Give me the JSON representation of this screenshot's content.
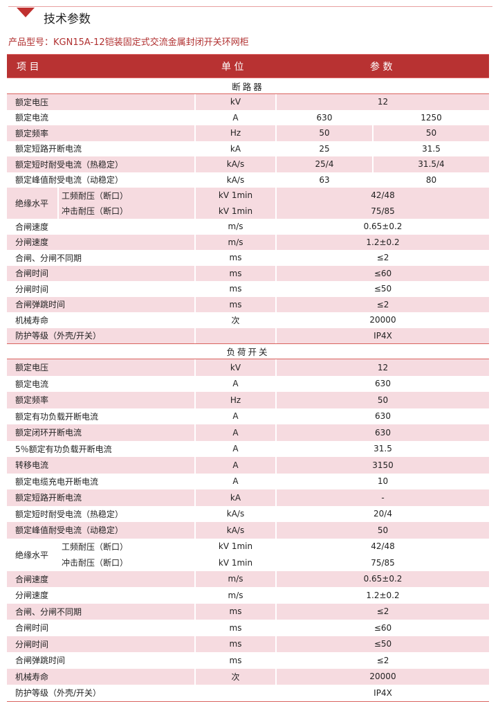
{
  "title": "技术参数",
  "model": "产品型号：KGN15A-12铠装固定式交流金属封闭开关环网柜",
  "header": {
    "item": "项 目",
    "unit": "单 位",
    "value": "参 数"
  },
  "colors": {
    "accent": "#b83232",
    "row_pink": "#f6dbe0"
  },
  "sections": [
    {
      "name": "断路器",
      "rows": [
        {
          "item": "额定电压",
          "unit": "kV",
          "values": [
            "12"
          ]
        },
        {
          "item": "额定电流",
          "unit": "A",
          "values": [
            "630",
            "1250"
          ]
        },
        {
          "item": "额定频率",
          "unit": "Hz",
          "values": [
            "50",
            "50"
          ]
        },
        {
          "item": "额定短路开断电流",
          "unit": "kA",
          "values": [
            "25",
            "31.5"
          ]
        },
        {
          "item": "额定短时耐受电流（热稳定）",
          "unit": "kA/s",
          "values": [
            "25/4",
            "31.5/4"
          ]
        },
        {
          "item": "额定峰值耐受电流（动稳定）",
          "unit": "kA/s",
          "values": [
            "63",
            "80"
          ]
        },
        {
          "group": "绝缘水平",
          "subs": [
            {
              "item": "工频耐压（断口）",
              "unit": "kV 1min",
              "values": [
                "42/48"
              ]
            },
            {
              "item": "冲击耐压（断口）",
              "unit": "kV 1min",
              "values": [
                "75/85"
              ]
            }
          ]
        },
        {
          "item": "合闸速度",
          "unit": "m/s",
          "values": [
            "0.65±0.2"
          ]
        },
        {
          "item": "分闸速度",
          "unit": "m/s",
          "values": [
            "1.2±0.2"
          ]
        },
        {
          "item": "合闸、分闸不同期",
          "unit": "ms",
          "values": [
            "≤2"
          ]
        },
        {
          "item": "合闸时间",
          "unit": "ms",
          "values": [
            "≤60"
          ]
        },
        {
          "item": "分闸时间",
          "unit": "ms",
          "values": [
            "≤50"
          ]
        },
        {
          "item": "合闸弹跳时间",
          "unit": "ms",
          "values": [
            "≤2"
          ]
        },
        {
          "item": "机械寿命",
          "unit": "次",
          "values": [
            "20000"
          ]
        },
        {
          "item": "防护等级（外壳/开关）",
          "unit": "",
          "values": [
            "IP4X"
          ]
        }
      ]
    },
    {
      "name": "负荷开关",
      "rows": [
        {
          "item": "额定电压",
          "unit": "kV",
          "values": [
            "12"
          ]
        },
        {
          "item": "额定电流",
          "unit": "A",
          "values": [
            "630"
          ]
        },
        {
          "item": "额定频率",
          "unit": "Hz",
          "values": [
            "50"
          ]
        },
        {
          "item": "额定有功负载开断电流",
          "unit": "A",
          "values": [
            "630"
          ]
        },
        {
          "item": "额定闭环开断电流",
          "unit": "A",
          "values": [
            "630"
          ]
        },
        {
          "item": "5％额定有功负载开断电流",
          "unit": "A",
          "values": [
            "31.5"
          ]
        },
        {
          "item": "转移电流",
          "unit": "A",
          "values": [
            "3150"
          ]
        },
        {
          "item": "额定电缆充电开断电流",
          "unit": "A",
          "values": [
            "10"
          ]
        },
        {
          "item": "额定短路开断电流",
          "unit": "kA",
          "values": [
            "-"
          ]
        },
        {
          "item": "额定短时耐受电流（热稳定）",
          "unit": "kA/s",
          "values": [
            "20/4"
          ]
        },
        {
          "item": "额定峰值耐受电流（动稳定）",
          "unit": "kA/s",
          "values": [
            "50"
          ]
        },
        {
          "group": "绝缘水平",
          "subs": [
            {
              "item": "工频耐压（断口）",
              "unit": "kV 1min",
              "values": [
                "42/48"
              ]
            },
            {
              "item": "冲击耐压（断口）",
              "unit": "kV 1min",
              "values": [
                "75/85"
              ]
            }
          ]
        },
        {
          "item": "合闸速度",
          "unit": "m/s",
          "values": [
            "0.65±0.2"
          ]
        },
        {
          "item": "分闸速度",
          "unit": "m/s",
          "values": [
            "1.2±0.2"
          ]
        },
        {
          "item": "合闸、分闸不同期",
          "unit": "ms",
          "values": [
            "≤2"
          ]
        },
        {
          "item": "合闸时间",
          "unit": "ms",
          "values": [
            "≤60"
          ]
        },
        {
          "item": "分闸时间",
          "unit": "ms",
          "values": [
            "≤50"
          ]
        },
        {
          "item": "合闸弹跳时间",
          "unit": "ms",
          "values": [
            "≤2"
          ]
        },
        {
          "item": "机械寿命",
          "unit": "次",
          "values": [
            "20000"
          ]
        },
        {
          "item": "防护等级（外壳/开关）",
          "unit": "",
          "values": [
            "IP4X"
          ]
        }
      ]
    }
  ]
}
